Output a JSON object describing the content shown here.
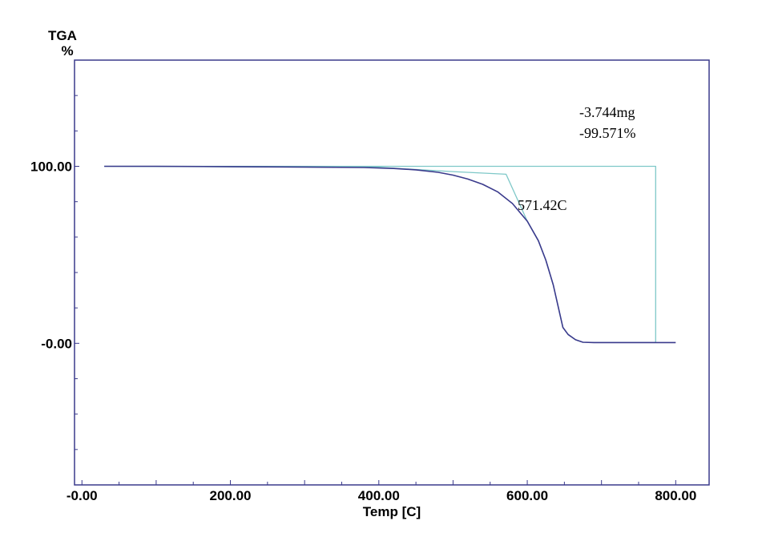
{
  "chart_data": {
    "type": "line",
    "title": "",
    "ylabel_line1": "TGA",
    "ylabel_line2": "%",
    "xlabel": "Temp [C]",
    "xlim": [
      -10,
      845
    ],
    "ylim": [
      -80,
      160
    ],
    "x_ticks": [
      {
        "value": 0,
        "label": "-0.00"
      },
      {
        "value": 200,
        "label": "200.00"
      },
      {
        "value": 400,
        "label": "400.00"
      },
      {
        "value": 600,
        "label": "600.00"
      },
      {
        "value": 800,
        "label": "800.00"
      }
    ],
    "y_ticks": [
      {
        "value": 100,
        "label": "100.00"
      },
      {
        "value": 0,
        "label": "-0.00"
      }
    ],
    "series": [
      {
        "color": "#3a3a8c",
        "x": [
          30,
          100,
          200,
          300,
          380,
          420,
          450,
          480,
          500,
          520,
          540,
          560,
          580,
          600,
          615,
          625,
          635,
          642,
          648,
          655,
          665,
          675,
          690,
          720,
          800
        ],
        "y": [
          100,
          100,
          99.8,
          99.6,
          99.3,
          98.8,
          98.0,
          96.6,
          95.0,
          92.8,
          89.8,
          85.6,
          79.0,
          69.0,
          58.0,
          47.0,
          33.0,
          20.0,
          9.0,
          5.0,
          2.0,
          0.6,
          0.4,
          0.4,
          0.4
        ]
      },
      {
        "color": "#7ec8c8",
        "x": [
          30,
          400,
          500,
          571.42,
          600,
          615,
          625,
          635,
          642,
          648,
          655,
          665,
          675,
          690,
          720,
          773,
          773,
          30
        ],
        "y": [
          100,
          99.4,
          97.0,
          95.5,
          69.0,
          58.0,
          47.0,
          33.0,
          20.0,
          9.0,
          5.0,
          2.0,
          0.6,
          0.4,
          0.4,
          0.4,
          100,
          100
        ]
      }
    ],
    "annotations": [
      {
        "id": "mass",
        "text": "-3.744mg"
      },
      {
        "id": "percent",
        "text": "-99.571%"
      },
      {
        "id": "onset",
        "text": "571.42C"
      }
    ]
  }
}
